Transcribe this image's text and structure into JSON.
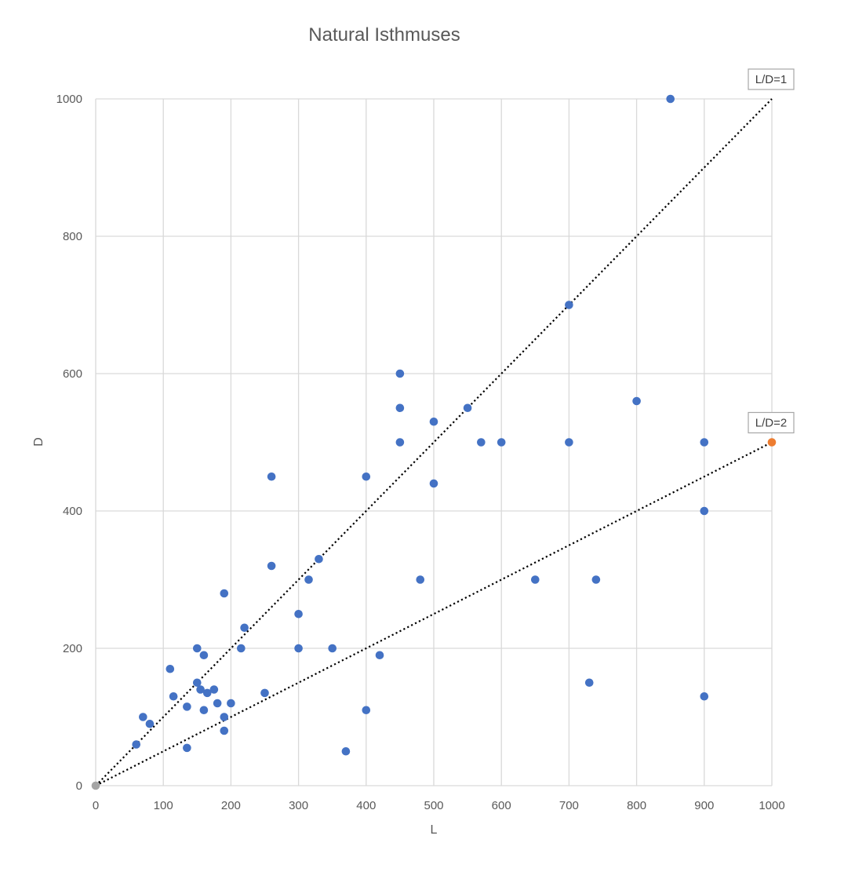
{
  "chart_data": {
    "type": "scatter",
    "title": "Natural Isthmuses",
    "xlabel": "L",
    "ylabel": "D",
    "xlim": [
      0,
      1000
    ],
    "ylim": [
      0,
      1000
    ],
    "xticks": [
      0,
      100,
      200,
      300,
      400,
      500,
      600,
      700,
      800,
      900,
      1000
    ],
    "yticks": [
      0,
      200,
      400,
      600,
      800,
      1000
    ],
    "grid": true,
    "legend": "none",
    "colors": {
      "points": "#4472c4",
      "origin_point": "#a5a5a5",
      "highlight_point": "#ed7d31",
      "reference_lines": "#000000",
      "grid": "#d9d9d9"
    },
    "series": [
      {
        "points": [
          [
            60,
            60
          ],
          [
            70,
            100
          ],
          [
            80,
            90
          ],
          [
            110,
            170
          ],
          [
            115,
            130
          ],
          [
            135,
            115
          ],
          [
            135,
            55
          ],
          [
            150,
            200
          ],
          [
            150,
            150
          ],
          [
            155,
            140
          ],
          [
            160,
            190
          ],
          [
            160,
            110
          ],
          [
            165,
            135
          ],
          [
            175,
            140
          ],
          [
            180,
            120
          ],
          [
            190,
            280
          ],
          [
            190,
            100
          ],
          [
            190,
            80
          ],
          [
            200,
            120
          ],
          [
            215,
            200
          ],
          [
            220,
            230
          ],
          [
            250,
            135
          ],
          [
            260,
            450
          ],
          [
            260,
            320
          ],
          [
            300,
            250
          ],
          [
            300,
            200
          ],
          [
            315,
            300
          ],
          [
            330,
            330
          ],
          [
            350,
            200
          ],
          [
            370,
            50
          ],
          [
            400,
            450
          ],
          [
            400,
            110
          ],
          [
            420,
            190
          ],
          [
            450,
            600
          ],
          [
            450,
            550
          ],
          [
            450,
            500
          ],
          [
            480,
            300
          ],
          [
            500,
            530
          ],
          [
            500,
            440
          ],
          [
            550,
            550
          ],
          [
            570,
            500
          ],
          [
            600,
            500
          ],
          [
            650,
            300
          ],
          [
            700,
            700
          ],
          [
            700,
            500
          ],
          [
            730,
            150
          ],
          [
            740,
            300
          ],
          [
            800,
            560
          ],
          [
            850,
            1000
          ],
          [
            900,
            500
          ],
          [
            900,
            400
          ],
          [
            900,
            130
          ]
        ]
      },
      {
        "points": [
          [
            0,
            0
          ]
        ]
      },
      {
        "points": [
          [
            1000,
            500
          ]
        ]
      }
    ],
    "reference_lines": [
      {
        "label": "L/D=1",
        "from": [
          0,
          0
        ],
        "to": [
          1000,
          1000
        ]
      },
      {
        "label": "L/D=2",
        "from": [
          0,
          0
        ],
        "to": [
          1000,
          500
        ]
      }
    ]
  }
}
